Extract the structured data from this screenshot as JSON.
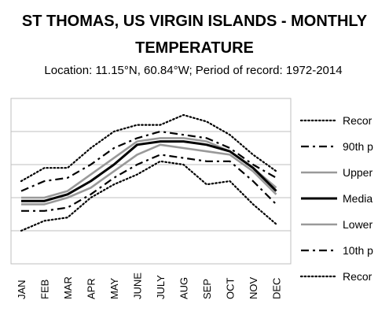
{
  "chart_data": {
    "type": "line",
    "title_line1": "ST THOMAS, US VIRGIN ISLANDS - MONTHLY",
    "title_line2": "TEMPERATURE",
    "subtitle": "Location: 11.15°N, 60.84°W; Period of record: 1972-2014",
    "categories": [
      "JAN",
      "FEB",
      "MAR",
      "APR",
      "MAY",
      "JUNE",
      "JULY",
      "AUG",
      "SEP",
      "OCT",
      "NOV",
      "DEC"
    ],
    "ylim": [
      0,
      5
    ],
    "grid": true,
    "legend_position": "right",
    "series": [
      {
        "name": "Recor",
        "style": "dotted",
        "color": "#000000",
        "values": [
          2.5,
          2.9,
          2.9,
          3.5,
          4.0,
          4.2,
          4.2,
          4.5,
          4.3,
          3.9,
          3.3,
          2.8
        ]
      },
      {
        "name": "90th p",
        "style": "dashdot",
        "color": "#000000",
        "values": [
          2.2,
          2.5,
          2.6,
          3.0,
          3.5,
          3.8,
          4.0,
          3.9,
          3.8,
          3.5,
          3.0,
          2.6
        ]
      },
      {
        "name": "Upper",
        "style": "solid",
        "color": "#999999",
        "values": [
          2.0,
          2.0,
          2.2,
          2.7,
          3.2,
          3.7,
          3.8,
          3.8,
          3.7,
          3.4,
          2.9,
          2.3
        ]
      },
      {
        "name": "Media",
        "style": "solid",
        "color": "#000000",
        "values": [
          1.9,
          1.9,
          2.1,
          2.5,
          3.0,
          3.6,
          3.7,
          3.7,
          3.6,
          3.4,
          2.9,
          2.2
        ]
      },
      {
        "name": "Lower",
        "style": "solid",
        "color": "#999999",
        "values": [
          1.8,
          1.8,
          2.0,
          2.3,
          2.8,
          3.3,
          3.6,
          3.5,
          3.4,
          3.3,
          2.8,
          2.1
        ]
      },
      {
        "name": "10th p",
        "style": "dashdot",
        "color": "#000000",
        "values": [
          1.6,
          1.6,
          1.7,
          2.1,
          2.6,
          3.0,
          3.3,
          3.2,
          3.1,
          3.1,
          2.5,
          1.8
        ]
      },
      {
        "name": "Recor",
        "style": "dotted",
        "color": "#000000",
        "values": [
          1.0,
          1.3,
          1.4,
          2.0,
          2.4,
          2.7,
          3.1,
          3.0,
          2.4,
          2.5,
          1.8,
          1.2
        ]
      }
    ]
  }
}
